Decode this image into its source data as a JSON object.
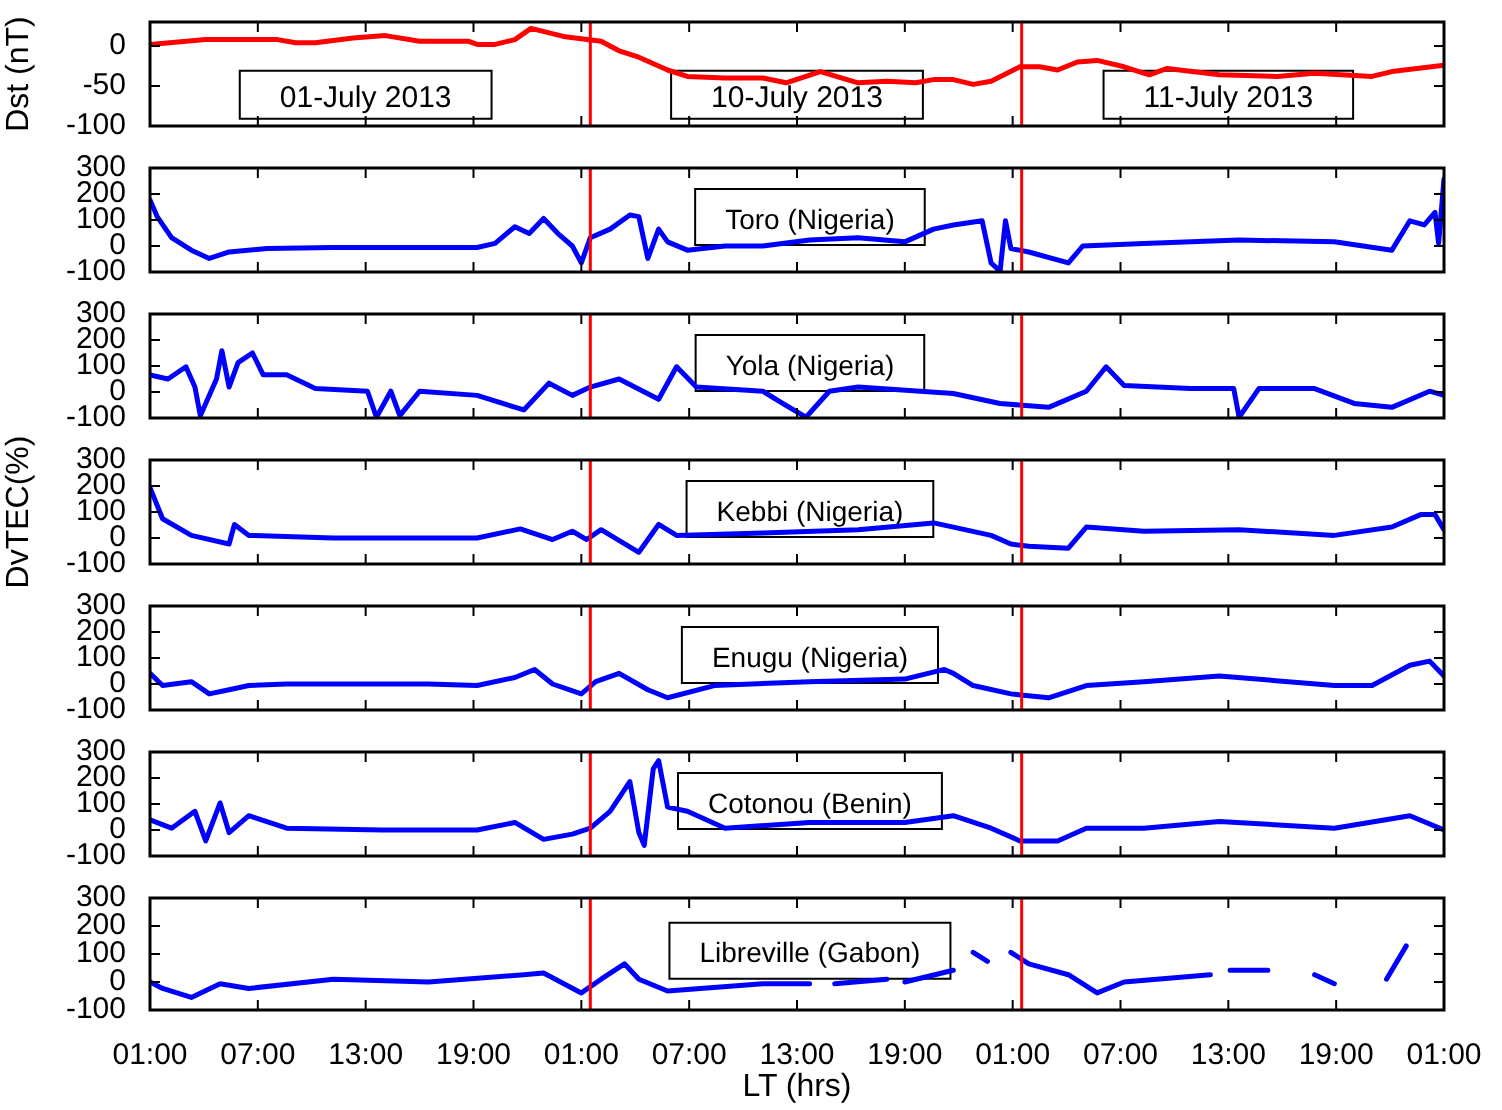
{
  "chart_data": [
    {
      "type": "line",
      "ylabel": "Dst (nT)",
      "annotations": [
        "01-July 2013",
        "10-July 2013",
        "11-July 2013"
      ],
      "x": [
        "2013-07-09T01:00",
        "2013-07-09T04:06",
        "2013-07-09T08:06",
        "2013-07-09T09:06",
        "2013-07-09T10:12",
        "2013-07-09T12:18",
        "2013-07-09T14:06",
        "2013-07-09T16:00",
        "2013-07-09T18:42",
        "2013-07-09T19:12",
        "2013-07-09T20:12",
        "2013-07-09T21:18",
        "2013-07-09T22:12",
        "2013-07-10T00:00",
        "2013-07-10T02:06",
        "2013-07-10T03:06",
        "2013-07-10T04:12",
        "2013-07-10T05:48",
        "2013-07-10T06:54",
        "2013-07-10T09:00",
        "2013-07-10T11:06",
        "2013-07-10T12:24",
        "2013-07-10T14:18",
        "2013-07-10T16:24",
        "2013-07-10T18:00",
        "2013-07-10T19:36",
        "2013-07-10T20:36",
        "2013-07-10T21:42",
        "2013-07-10T22:48",
        "2013-07-10T23:48",
        "2013-07-11T01:24",
        "2013-07-11T02:30",
        "2013-07-11T03:30",
        "2013-07-11T04:36",
        "2013-07-11T05:42",
        "2013-07-11T07:12",
        "2013-07-11T08:36",
        "2013-07-11T09:36",
        "2013-07-11T12:30",
        "2013-07-11T15:42",
        "2013-07-11T17:48",
        "2013-07-11T21:00",
        "2013-07-11T22:06",
        "2013-07-12T01:00"
      ],
      "series": [
        {
          "color": "#ff0000",
          "values": [
            2,
            8,
            8,
            4,
            4,
            10,
            13,
            6,
            6,
            2,
            2,
            8,
            22,
            12,
            6,
            -6,
            -14,
            -30,
            -38,
            -40,
            -40,
            -46,
            -32,
            -46,
            -44,
            -46,
            -42,
            -42,
            -48,
            -44,
            -26,
            -26,
            -30,
            -20,
            -18,
            -26,
            -36,
            -28,
            -36,
            -38,
            -34,
            -38,
            -32,
            -24
          ]
        }
      ],
      "xlim": [
        "2013-07-09T01:00",
        "2013-07-12T01:00"
      ],
      "xticks": [
        {
          "value": "2013-07-09T01:00",
          "label": null
        },
        {
          "value": "2013-07-09T07:00",
          "label": null
        },
        {
          "value": "2013-07-09T13:00",
          "label": null
        },
        {
          "value": "2013-07-09T19:00",
          "label": null
        },
        {
          "value": "2013-07-10T01:00",
          "label": null
        },
        {
          "value": "2013-07-10T07:00",
          "label": null
        },
        {
          "value": "2013-07-10T13:00",
          "label": null
        },
        {
          "value": "2013-07-10T19:00",
          "label": null
        },
        {
          "value": "2013-07-11T01:00",
          "label": null
        },
        {
          "value": "2013-07-11T07:00",
          "label": null
        },
        {
          "value": "2013-07-11T13:00",
          "label": null
        },
        {
          "value": "2013-07-11T19:00",
          "label": null
        },
        {
          "value": "2013-07-12T01:00",
          "label": null
        }
      ],
      "ylim": [
        -100,
        30
      ],
      "yticks": [
        -100,
        -50,
        0
      ],
      "tick_labels": "y",
      "ref_lines": [
        {
          "axis": "x",
          "value": "2013-07-10T01:30",
          "color": "#ff0000"
        },
        {
          "axis": "x",
          "value": "2013-07-11T01:30",
          "color": "#ff0000"
        }
      ]
    },
    {
      "type": "line",
      "annotations": [
        "Toro (Nigeria)"
      ],
      "x": [
        "2013-07-09T01:00",
        "2013-07-09T01:24",
        "2013-07-09T02:12",
        "2013-07-09T03:18",
        "2013-07-09T04:18",
        "2013-07-09T05:24",
        "2013-07-09T07:30",
        "2013-07-09T11:12",
        "2013-07-09T16:30",
        "2013-07-09T19:12",
        "2013-07-09T20:12",
        "2013-07-09T21:18",
        "2013-07-09T22:06",
        "2013-07-09T22:54",
        "2013-07-09T23:42",
        "2013-07-10T00:30",
        "2013-07-10T01:00",
        "2013-07-10T01:30",
        "2013-07-10T02:36",
        "2013-07-10T03:42",
        "2013-07-10T04:12",
        "2013-07-10T04:42",
        "2013-07-10T05:18",
        "2013-07-10T05:48",
        "2013-07-10T06:54",
        "2013-07-10T09:00",
        "2013-07-10T11:06",
        "2013-07-10T13:42",
        "2013-07-10T16:24",
        "2013-07-10T19:00",
        "2013-07-10T20:36",
        "2013-07-10T21:42",
        "2013-07-10T23:18",
        "2013-07-10T23:48",
        "2013-07-11T00:18",
        "2013-07-11T00:36",
        "2013-07-11T00:54",
        "2013-07-11T01:54",
        "2013-07-11T04:06",
        "2013-07-11T04:54",
        "2013-07-11T08:18",
        "2013-07-11T13:36",
        "2013-07-11T18:54",
        "2013-07-11T22:06",
        "2013-07-11T23:06",
        "2013-07-11T23:54",
        "2013-07-12T00:30",
        "2013-07-12T00:42",
        "2013-07-12T01:00"
      ],
      "series": [
        {
          "color": "#0000ff",
          "values": [
            177,
            113,
            32,
            -16,
            -48,
            -23,
            -10,
            -6,
            -6,
            -6,
            10,
            74,
            48,
            106,
            48,
            0,
            -65,
            32,
            65,
            119,
            113,
            -48,
            65,
            16,
            -16,
            0,
            0,
            23,
            32,
            16,
            65,
            81,
            97,
            -65,
            -97,
            97,
            -10,
            -23,
            -65,
            0,
            10,
            23,
            16,
            -16,
            97,
            81,
            129,
            10,
            258
          ]
        }
      ],
      "xlim": [
        "2013-07-09T01:00",
        "2013-07-12T01:00"
      ],
      "xticks": [
        {
          "value": "2013-07-09T01:00",
          "label": null
        },
        {
          "value": "2013-07-09T07:00",
          "label": null
        },
        {
          "value": "2013-07-09T13:00",
          "label": null
        },
        {
          "value": "2013-07-09T19:00",
          "label": null
        },
        {
          "value": "2013-07-10T01:00",
          "label": null
        },
        {
          "value": "2013-07-10T07:00",
          "label": null
        },
        {
          "value": "2013-07-10T13:00",
          "label": null
        },
        {
          "value": "2013-07-10T19:00",
          "label": null
        },
        {
          "value": "2013-07-11T01:00",
          "label": null
        },
        {
          "value": "2013-07-11T07:00",
          "label": null
        },
        {
          "value": "2013-07-11T13:00",
          "label": null
        },
        {
          "value": "2013-07-11T19:00",
          "label": null
        },
        {
          "value": "2013-07-12T01:00",
          "label": null
        }
      ],
      "ylim": [
        -100,
        300
      ],
      "yticks": [
        -100,
        0,
        100,
        200,
        300
      ],
      "tick_labels": "y",
      "ref_lines": [
        {
          "axis": "x",
          "value": "2013-07-10T01:30",
          "color": "#ff0000"
        },
        {
          "axis": "x",
          "value": "2013-07-11T01:30",
          "color": "#ff0000"
        }
      ]
    },
    {
      "type": "line",
      "annotations": [
        "Yola (Nigeria)"
      ],
      "x": [
        "2013-07-09T01:00",
        "2013-07-09T02:00",
        "2013-07-09T03:00",
        "2013-07-09T03:30",
        "2013-07-09T03:48",
        "2013-07-09T04:42",
        "2013-07-09T05:00",
        "2013-07-09T05:24",
        "2013-07-09T05:54",
        "2013-07-09T06:42",
        "2013-07-09T07:18",
        "2013-07-09T08:36",
        "2013-07-09T10:12",
        "2013-07-09T13:06",
        "2013-07-09T13:36",
        "2013-07-09T14:24",
        "2013-07-09T14:54",
        "2013-07-09T16:00",
        "2013-07-09T19:12",
        "2013-07-09T21:48",
        "2013-07-09T23:12",
        "2013-07-10T00:30",
        "2013-07-10T01:30",
        "2013-07-10T03:06",
        "2013-07-10T05:18",
        "2013-07-10T06:18",
        "2013-07-10T07:24",
        "2013-07-10T11:06",
        "2013-07-10T12:12",
        "2013-07-10T13:30",
        "2013-07-10T14:48",
        "2013-07-10T16:24",
        "2013-07-10T21:42",
        "2013-07-11T00:18",
        "2013-07-11T03:00",
        "2013-07-11T05:06",
        "2013-07-11T06:12",
        "2013-07-11T07:12",
        "2013-07-11T10:54",
        "2013-07-11T13:18",
        "2013-07-11T13:36",
        "2013-07-11T14:42",
        "2013-07-11T17:48",
        "2013-07-11T20:00",
        "2013-07-11T22:06",
        "2013-07-12T00:12",
        "2013-07-12T01:00"
      ],
      "series": [
        {
          "color": "#0000ff",
          "values": [
            66,
            50,
            97,
            19,
            -91,
            50,
            159,
            19,
            113,
            150,
            66,
            66,
            13,
            3,
            -97,
            3,
            -91,
            3,
            -13,
            -69,
            34,
            -13,
            19,
            50,
            -28,
            97,
            19,
            3,
            -44,
            -97,
            3,
            19,
            -6,
            -44,
            -59,
            3,
            97,
            25,
            13,
            13,
            -97,
            13,
            13,
            -44,
            -59,
            3,
            -13
          ]
        }
      ],
      "xlim": [
        "2013-07-09T01:00",
        "2013-07-12T01:00"
      ],
      "xticks": [
        {
          "value": "2013-07-09T01:00",
          "label": null
        },
        {
          "value": "2013-07-09T07:00",
          "label": null
        },
        {
          "value": "2013-07-09T13:00",
          "label": null
        },
        {
          "value": "2013-07-09T19:00",
          "label": null
        },
        {
          "value": "2013-07-10T01:00",
          "label": null
        },
        {
          "value": "2013-07-10T07:00",
          "label": null
        },
        {
          "value": "2013-07-10T13:00",
          "label": null
        },
        {
          "value": "2013-07-10T19:00",
          "label": null
        },
        {
          "value": "2013-07-11T01:00",
          "label": null
        },
        {
          "value": "2013-07-11T07:00",
          "label": null
        },
        {
          "value": "2013-07-11T13:00",
          "label": null
        },
        {
          "value": "2013-07-11T19:00",
          "label": null
        },
        {
          "value": "2013-07-12T01:00",
          "label": null
        }
      ],
      "ylim": [
        -100,
        300
      ],
      "yticks": [
        -100,
        0,
        100,
        200,
        300
      ],
      "tick_labels": "y",
      "ref_lines": [
        {
          "axis": "x",
          "value": "2013-07-10T01:30",
          "color": "#ff0000"
        },
        {
          "axis": "x",
          "value": "2013-07-11T01:30",
          "color": "#ff0000"
        }
      ]
    },
    {
      "type": "line",
      "ylabel": "DvTEC(%)",
      "annotations": [
        "Kebbi (Nigeria)"
      ],
      "x": [
        "2013-07-09T01:00",
        "2013-07-09T01:42",
        "2013-07-09T03:18",
        "2013-07-09T05:24",
        "2013-07-09T05:42",
        "2013-07-09T06:30",
        "2013-07-09T11:12",
        "2013-07-09T19:12",
        "2013-07-09T21:36",
        "2013-07-09T23:24",
        "2013-07-10T00:30",
        "2013-07-10T01:18",
        "2013-07-10T02:06",
        "2013-07-10T04:12",
        "2013-07-10T05:18",
        "2013-07-10T06:18",
        "2013-07-10T11:06",
        "2013-07-10T16:24",
        "2013-07-10T20:36",
        "2013-07-10T21:42",
        "2013-07-10T23:48",
        "2013-07-11T00:54",
        "2013-07-11T01:54",
        "2013-07-11T04:06",
        "2013-07-11T05:06",
        "2013-07-11T08:18",
        "2013-07-11T13:36",
        "2013-07-11T18:54",
        "2013-07-11T22:06",
        "2013-07-11T23:42",
        "2013-07-12T00:30",
        "2013-07-12T01:00"
      ],
      "series": [
        {
          "color": "#0000ff",
          "values": [
            194,
            74,
            10,
            -23,
            52,
            10,
            0,
            0,
            35,
            -6,
            26,
            -6,
            32,
            -55,
            52,
            10,
            19,
            32,
            58,
            42,
            10,
            -23,
            -32,
            -39,
            42,
            26,
            32,
            10,
            42,
            90,
            90,
            32
          ]
        }
      ],
      "xlim": [
        "2013-07-09T01:00",
        "2013-07-12T01:00"
      ],
      "xticks": [
        {
          "value": "2013-07-09T01:00",
          "label": null
        },
        {
          "value": "2013-07-09T07:00",
          "label": null
        },
        {
          "value": "2013-07-09T13:00",
          "label": null
        },
        {
          "value": "2013-07-09T19:00",
          "label": null
        },
        {
          "value": "2013-07-10T01:00",
          "label": null
        },
        {
          "value": "2013-07-10T07:00",
          "label": null
        },
        {
          "value": "2013-07-10T13:00",
          "label": null
        },
        {
          "value": "2013-07-10T19:00",
          "label": null
        },
        {
          "value": "2013-07-11T01:00",
          "label": null
        },
        {
          "value": "2013-07-11T07:00",
          "label": null
        },
        {
          "value": "2013-07-11T13:00",
          "label": null
        },
        {
          "value": "2013-07-11T19:00",
          "label": null
        },
        {
          "value": "2013-07-12T01:00",
          "label": null
        }
      ],
      "ylim": [
        -100,
        300
      ],
      "yticks": [
        -100,
        0,
        100,
        200,
        300
      ],
      "tick_labels": "y",
      "ref_lines": [
        {
          "axis": "x",
          "value": "2013-07-10T01:30",
          "color": "#ff0000"
        },
        {
          "axis": "x",
          "value": "2013-07-11T01:30",
          "color": "#ff0000"
        }
      ]
    },
    {
      "type": "line",
      "annotations": [
        "Enugu (Nigeria)"
      ],
      "x": [
        "2013-07-09T01:00",
        "2013-07-09T01:42",
        "2013-07-09T03:18",
        "2013-07-09T04:18",
        "2013-07-09T05:24",
        "2013-07-09T06:30",
        "2013-07-09T08:36",
        "2013-07-09T16:30",
        "2013-07-09T19:12",
        "2013-07-09T21:18",
        "2013-07-09T22:24",
        "2013-07-09T23:24",
        "2013-07-10T01:00",
        "2013-07-10T01:48",
        "2013-07-10T03:06",
        "2013-07-10T04:42",
        "2013-07-10T05:48",
        "2013-07-10T08:24",
        "2013-07-10T13:42",
        "2013-07-10T19:00",
        "2013-07-10T21:12",
        "2013-07-10T21:42",
        "2013-07-10T22:48",
        "2013-07-11T00:54",
        "2013-07-11T03:00",
        "2013-07-11T05:06",
        "2013-07-11T08:18",
        "2013-07-11T12:30",
        "2013-07-11T18:54",
        "2013-07-11T21:00",
        "2013-07-11T23:06",
        "2013-07-12T00:12",
        "2013-07-12T01:00"
      ],
      "series": [
        {
          "color": "#0000ff",
          "values": [
            41,
            -6,
            9,
            -38,
            -22,
            -6,
            0,
            0,
            -6,
            25,
            56,
            0,
            -38,
            9,
            41,
            -22,
            -53,
            -6,
            9,
            19,
            56,
            41,
            -6,
            -38,
            -53,
            -6,
            9,
            31,
            -6,
            -6,
            72,
            88,
            31
          ]
        }
      ],
      "xlim": [
        "2013-07-09T01:00",
        "2013-07-12T01:00"
      ],
      "xticks": [
        {
          "value": "2013-07-09T01:00",
          "label": null
        },
        {
          "value": "2013-07-09T07:00",
          "label": null
        },
        {
          "value": "2013-07-09T13:00",
          "label": null
        },
        {
          "value": "2013-07-09T19:00",
          "label": null
        },
        {
          "value": "2013-07-10T01:00",
          "label": null
        },
        {
          "value": "2013-07-10T07:00",
          "label": null
        },
        {
          "value": "2013-07-10T13:00",
          "label": null
        },
        {
          "value": "2013-07-10T19:00",
          "label": null
        },
        {
          "value": "2013-07-11T01:00",
          "label": null
        },
        {
          "value": "2013-07-11T07:00",
          "label": null
        },
        {
          "value": "2013-07-11T13:00",
          "label": null
        },
        {
          "value": "2013-07-11T19:00",
          "label": null
        },
        {
          "value": "2013-07-12T01:00",
          "label": null
        }
      ],
      "ylim": [
        -100,
        300
      ],
      "yticks": [
        -100,
        0,
        100,
        200,
        300
      ],
      "tick_labels": "y",
      "ref_lines": [
        {
          "axis": "x",
          "value": "2013-07-10T01:30",
          "color": "#ff0000"
        },
        {
          "axis": "x",
          "value": "2013-07-11T01:30",
          "color": "#ff0000"
        }
      ]
    },
    {
      "type": "line",
      "annotations": [
        "Cotonou (Benin)"
      ],
      "x": [
        "2013-07-09T01:00",
        "2013-07-09T02:12",
        "2013-07-09T03:30",
        "2013-07-09T04:06",
        "2013-07-09T04:54",
        "2013-07-09T05:24",
        "2013-07-09T06:30",
        "2013-07-09T08:36",
        "2013-07-09T13:54",
        "2013-07-09T19:12",
        "2013-07-09T21:18",
        "2013-07-09T22:54",
        "2013-07-10T00:30",
        "2013-07-10T01:30",
        "2013-07-10T02:36",
        "2013-07-10T03:42",
        "2013-07-10T04:12",
        "2013-07-10T04:30",
        "2013-07-10T05:00",
        "2013-07-10T05:18",
        "2013-07-10T05:48",
        "2013-07-10T06:54",
        "2013-07-10T09:00",
        "2013-07-10T13:42",
        "2013-07-10T19:00",
        "2013-07-10T21:42",
        "2013-07-10T23:48",
        "2013-07-11T01:24",
        "2013-07-11T03:30",
        "2013-07-11T05:06",
        "2013-07-11T08:18",
        "2013-07-11T12:30",
        "2013-07-11T18:54",
        "2013-07-11T23:06",
        "2013-07-12T01:00"
      ],
      "series": [
        {
          "color": "#0000ff",
          "values": [
            39,
            7,
            72,
            -42,
            104,
            -10,
            55,
            7,
            0,
            0,
            29,
            -36,
            -16,
            7,
            72,
            186,
            -10,
            -59,
            235,
            267,
            88,
            72,
            7,
            29,
            29,
            55,
            7,
            -42,
            -42,
            7,
            7,
            33,
            7,
            55,
            0
          ]
        }
      ],
      "xlim": [
        "2013-07-09T01:00",
        "2013-07-12T01:00"
      ],
      "xticks": [
        {
          "value": "2013-07-09T01:00",
          "label": null
        },
        {
          "value": "2013-07-09T07:00",
          "label": null
        },
        {
          "value": "2013-07-09T13:00",
          "label": null
        },
        {
          "value": "2013-07-09T19:00",
          "label": null
        },
        {
          "value": "2013-07-10T01:00",
          "label": null
        },
        {
          "value": "2013-07-10T07:00",
          "label": null
        },
        {
          "value": "2013-07-10T13:00",
          "label": null
        },
        {
          "value": "2013-07-10T19:00",
          "label": null
        },
        {
          "value": "2013-07-11T01:00",
          "label": null
        },
        {
          "value": "2013-07-11T07:00",
          "label": null
        },
        {
          "value": "2013-07-11T13:00",
          "label": null
        },
        {
          "value": "2013-07-11T19:00",
          "label": null
        },
        {
          "value": "2013-07-12T01:00",
          "label": null
        }
      ],
      "ylim": [
        -100,
        300
      ],
      "yticks": [
        -100,
        0,
        100,
        200,
        300
      ],
      "tick_labels": "y",
      "ref_lines": [
        {
          "axis": "x",
          "value": "2013-07-10T01:30",
          "color": "#ff0000"
        },
        {
          "axis": "x",
          "value": "2013-07-11T01:30",
          "color": "#ff0000"
        }
      ]
    },
    {
      "type": "line",
      "xlabel": "LT (hrs)",
      "annotations": [
        "Libreville (Gabon)"
      ],
      "x": [
        "2013-07-09T01:00",
        "2013-07-09T01:42",
        "2013-07-09T03:18",
        "2013-07-09T04:54",
        "2013-07-09T06:30",
        "2013-07-09T11:12",
        "2013-07-09T16:30",
        "2013-07-09T21:48",
        "2013-07-09T22:54",
        "2013-07-10T01:00",
        "2013-07-10T02:06",
        "2013-07-10T03:24",
        "2013-07-10T04:12",
        "2013-07-10T05:48",
        "2013-07-10T11:06",
        "2013-07-10T13:42",
        "2013-07-10T14:24",
        "2013-07-10T15:06",
        "2013-07-10T18:00",
        "2013-07-10T18:30",
        "2013-07-10T19:00",
        "2013-07-10T21:42",
        "2013-07-10T22:18",
        "2013-07-10T22:48",
        "2013-07-10T23:36",
        "2013-07-11T00:12",
        "2013-07-11T00:54",
        "2013-07-11T01:54",
        "2013-07-11T04:06",
        "2013-07-11T05:42",
        "2013-07-11T07:12",
        "2013-07-11T12:00",
        "2013-07-11T12:36",
        "2013-07-11T13:06",
        "2013-07-11T15:12",
        "2013-07-11T16:30",
        "2013-07-11T17:48",
        "2013-07-11T18:54",
        "2013-07-11T20:24",
        "2013-07-11T21:48",
        "2013-07-11T22:54"
      ],
      "series": [
        {
          "color": "#0000ff",
          "values": [
            0,
            -23,
            -55,
            -6,
            -23,
            10,
            0,
            26,
            32,
            -39,
            10,
            65,
            10,
            -32,
            -6,
            -6,
            null,
            -6,
            10,
            null,
            0,
            42,
            null,
            106,
            74,
            null,
            106,
            65,
            26,
            -39,
            0,
            26,
            null,
            42,
            42,
            null,
            26,
            -6,
            null,
            10,
            129
          ]
        }
      ],
      "xlim": [
        "2013-07-09T01:00",
        "2013-07-12T01:00"
      ],
      "xticks": [
        {
          "value": "2013-07-09T01:00",
          "label": "01:00"
        },
        {
          "value": "2013-07-09T07:00",
          "label": "07:00"
        },
        {
          "value": "2013-07-09T13:00",
          "label": "13:00"
        },
        {
          "value": "2013-07-09T19:00",
          "label": "19:00"
        },
        {
          "value": "2013-07-10T01:00",
          "label": "01:00"
        },
        {
          "value": "2013-07-10T07:00",
          "label": "07:00"
        },
        {
          "value": "2013-07-10T13:00",
          "label": "13:00"
        },
        {
          "value": "2013-07-10T19:00",
          "label": "19:00"
        },
        {
          "value": "2013-07-11T01:00",
          "label": "01:00"
        },
        {
          "value": "2013-07-11T07:00",
          "label": "07:00"
        },
        {
          "value": "2013-07-11T13:00",
          "label": "13:00"
        },
        {
          "value": "2013-07-11T19:00",
          "label": "19:00"
        },
        {
          "value": "2013-07-12T01:00",
          "label": "01:00"
        }
      ],
      "ylim": [
        -100,
        300
      ],
      "yticks": [
        -100,
        0,
        100,
        200,
        300
      ],
      "ref_lines": [
        {
          "axis": "x",
          "value": "2013-07-10T01:30",
          "color": "#ff0000"
        },
        {
          "axis": "x",
          "value": "2013-07-11T01:30",
          "color": "#ff0000"
        }
      ]
    }
  ]
}
